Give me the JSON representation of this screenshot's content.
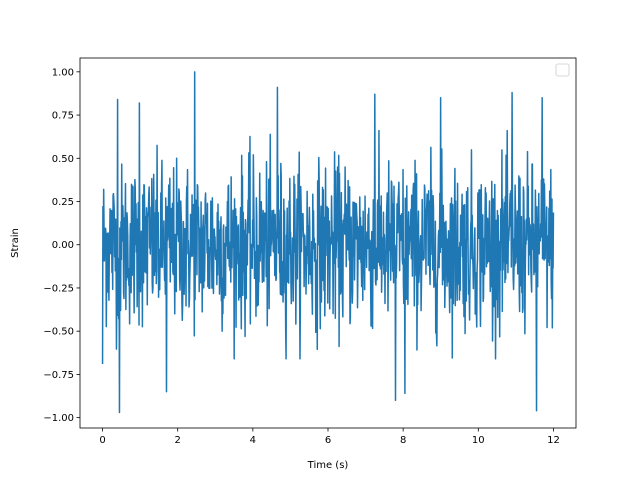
{
  "chart_data": {
    "type": "line",
    "title": "",
    "xlabel": "Time (s)",
    "ylabel": "Strain",
    "xlim": [
      -0.6,
      12.6
    ],
    "ylim": [
      -1.06,
      1.08
    ],
    "xticks": [
      0,
      2,
      4,
      6,
      8,
      10,
      12
    ],
    "xtick_labels": [
      "0",
      "2",
      "4",
      "6",
      "8",
      "10",
      "12"
    ],
    "yticks": [
      -1.0,
      -0.75,
      -0.5,
      -0.25,
      0.0,
      0.25,
      0.5,
      0.75,
      1.0
    ],
    "ytick_labels": [
      "−1.00",
      "−0.75",
      "−0.50",
      "−0.25",
      "0.00",
      "0.25",
      "0.50",
      "0.75",
      "1.00"
    ],
    "grid": false,
    "legend": {
      "placement": "top-right",
      "entries": []
    },
    "series": [
      {
        "color": "#1f77b4",
        "x_start": 0,
        "x_end": 12,
        "n_points": 1200,
        "style": "dense random noise, mostly within ±0.5",
        "peaks": [
          [
            0.0,
            0.75
          ],
          [
            0.0,
            -0.69
          ],
          [
            0.4,
            0.84
          ],
          [
            0.45,
            0.98
          ],
          [
            0.45,
            -0.97
          ],
          [
            0.98,
            0.82
          ],
          [
            1.7,
            -0.85
          ],
          [
            2.45,
            1.0
          ],
          [
            4.65,
            0.91
          ],
          [
            7.25,
            0.87
          ],
          [
            7.8,
            -0.9
          ],
          [
            8.05,
            -0.86
          ],
          [
            9.0,
            0.85
          ],
          [
            10.9,
            0.88
          ],
          [
            11.55,
            -0.96
          ],
          [
            11.7,
            0.85
          ]
        ]
      }
    ]
  }
}
